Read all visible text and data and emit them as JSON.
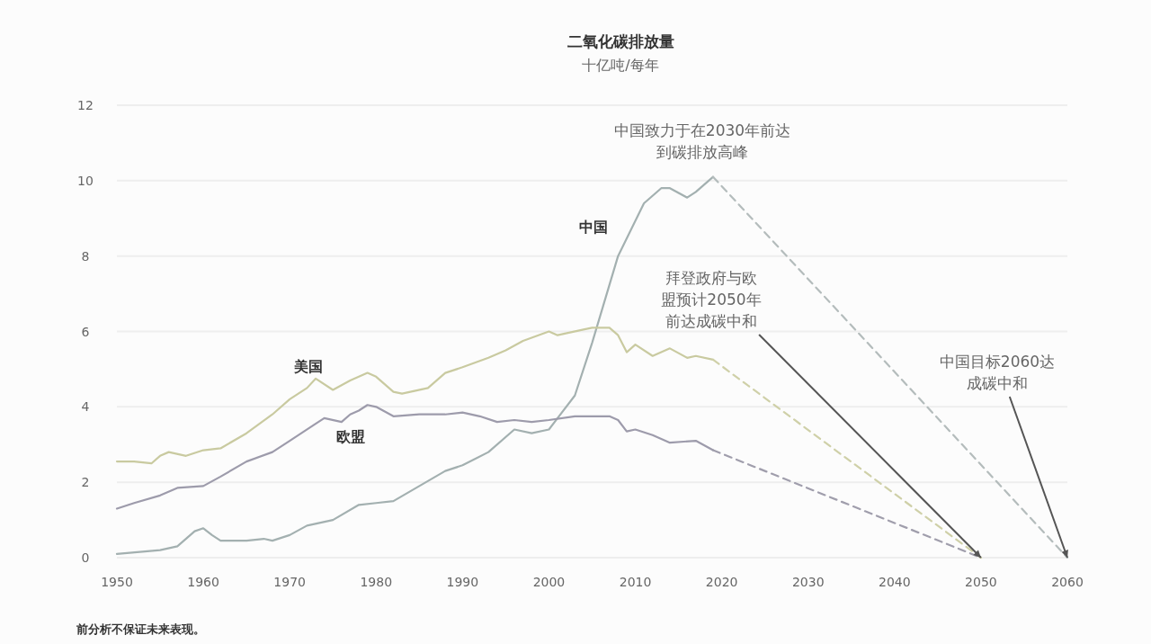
{
  "chart_data": {
    "type": "line",
    "title": "二氧化碳排放量",
    "subtitle": "十亿吨/每年",
    "xlim": [
      1950,
      2060
    ],
    "xticks": [
      1950,
      1960,
      1970,
      1980,
      1990,
      2000,
      2010,
      2020,
      2030,
      2040,
      2050,
      2060
    ],
    "ylim": [
      0,
      12
    ],
    "yticks": [
      0,
      2,
      4,
      6,
      8,
      10,
      12
    ],
    "grid": "y",
    "legend": false,
    "marker": "none",
    "series": [
      {
        "name": "中国",
        "color": "#a3b0b0",
        "x": [
          1950,
          1955,
          1957,
          1959,
          1960,
          1961,
          1962,
          1965,
          1967,
          1968,
          1970,
          1972,
          1975,
          1978,
          1980,
          1982,
          1985,
          1988,
          1990,
          1993,
          1996,
          1998,
          2000,
          2001,
          2003,
          2005,
          2008,
          2011,
          2013,
          2014,
          2016,
          2017,
          2019
        ],
        "values": [
          0.1,
          0.2,
          0.3,
          0.7,
          0.78,
          0.6,
          0.45,
          0.45,
          0.5,
          0.45,
          0.6,
          0.85,
          1.0,
          1.4,
          1.45,
          1.5,
          1.9,
          2.3,
          2.45,
          2.8,
          3.4,
          3.3,
          3.4,
          3.7,
          4.3,
          5.7,
          8.0,
          9.4,
          9.8,
          9.8,
          9.55,
          9.7,
          10.1
        ]
      },
      {
        "name": "美国",
        "color": "#c9caa0",
        "x": [
          1950,
          1952,
          1954,
          1955,
          1956,
          1958,
          1960,
          1962,
          1965,
          1968,
          1970,
          1972,
          1973,
          1975,
          1977,
          1979,
          1980,
          1982,
          1983,
          1986,
          1988,
          1990,
          1993,
          1995,
          1997,
          2000,
          2001,
          2004,
          2005,
          2007,
          2008,
          2009,
          2010,
          2012,
          2014,
          2016,
          2017,
          2019
        ],
        "values": [
          2.55,
          2.55,
          2.5,
          2.7,
          2.8,
          2.7,
          2.85,
          2.9,
          3.3,
          3.8,
          4.2,
          4.5,
          4.75,
          4.45,
          4.7,
          4.9,
          4.8,
          4.4,
          4.35,
          4.5,
          4.9,
          5.05,
          5.3,
          5.5,
          5.75,
          6.0,
          5.9,
          6.05,
          6.1,
          6.1,
          5.9,
          5.45,
          5.65,
          5.35,
          5.55,
          5.3,
          5.35,
          5.25
        ]
      },
      {
        "name": "欧盟",
        "color": "#9d9bab",
        "x": [
          1950,
          1952,
          1955,
          1957,
          1960,
          1962,
          1965,
          1968,
          1970,
          1973,
          1974,
          1976,
          1977,
          1978,
          1979,
          1980,
          1982,
          1985,
          1988,
          1990,
          1992,
          1994,
          1996,
          1998,
          2000,
          2003,
          2007,
          2008,
          2009,
          2010,
          2012,
          2014,
          2017,
          2019
        ],
        "values": [
          1.3,
          1.45,
          1.65,
          1.85,
          1.9,
          2.15,
          2.55,
          2.8,
          3.1,
          3.55,
          3.7,
          3.6,
          3.8,
          3.9,
          4.05,
          4.0,
          3.75,
          3.8,
          3.8,
          3.85,
          3.75,
          3.6,
          3.65,
          3.6,
          3.65,
          3.75,
          3.75,
          3.65,
          3.35,
          3.4,
          3.25,
          3.05,
          3.1,
          2.85
        ]
      },
      {
        "color": "#b4bcbc",
        "line_style": "dashed",
        "x": [
          2019,
          2060
        ],
        "values": [
          10.1,
          0
        ]
      },
      {
        "color": "#cfd0a8",
        "line_style": "dashed",
        "x": [
          2019,
          2050
        ],
        "values": [
          5.25,
          0
        ]
      },
      {
        "color": "#a09eac",
        "line_style": "dashed",
        "x": [
          2019,
          2050
        ],
        "values": [
          2.85,
          0
        ]
      }
    ],
    "annotations": [
      "中国致力于在2030年前达到碳排放高峰",
      {
        "text": "拜登政府与欧盟预计2050年前达成碳中和",
        "x": 2050,
        "y": 0
      },
      {
        "text": "中国目标2060达成碳中和",
        "x": 2060,
        "y": 0
      },
      "前分析不保证未来表现。"
    ]
  }
}
